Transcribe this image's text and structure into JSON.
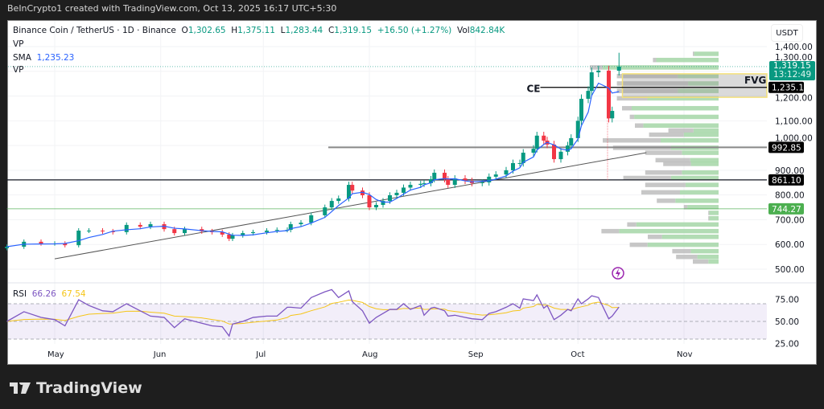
{
  "header": {
    "credit": "BeInCrypto1 created with TradingView.com, Oct 13, 2025 16:17 UTC+5:30"
  },
  "legend": {
    "symbol": "Binance Coin / TetherUS · 1D · Binance",
    "o_label": "O",
    "o": "1,302.65",
    "h_label": "H",
    "h": "1,375.11",
    "l_label": "L",
    "l": "1,283.44",
    "c_label": "C",
    "c": "1,319.15",
    "change": "+16.50 (+1.27%)",
    "vol_label": "Vol",
    "vol": "842.84K",
    "vp1": "VP",
    "sma_label": "SMA",
    "sma": "1,235.23",
    "vp2": "VP",
    "rsi_label": "RSI",
    "rsi": "66.26",
    "rsi_ma": "67.54"
  },
  "price_axis": {
    "currency": "USDT",
    "ticks": [
      "1,400.00",
      "1,300.00",
      "1,200.00",
      "1,100.00",
      "1,000.00",
      "900.00",
      "800.00",
      "700.00",
      "600.00",
      "500.00"
    ],
    "tick_values": [
      1400,
      1300,
      1200,
      1100,
      1000,
      900,
      800,
      700,
      600,
      500
    ],
    "last_price": "1,319.15",
    "countdown": "13:12:49"
  },
  "rsi_axis": {
    "ticks": [
      "75.00",
      "50.00",
      "25.00"
    ],
    "tick_values": [
      75,
      50,
      25
    ],
    "bands": [
      70,
      50,
      30
    ]
  },
  "time_axis": {
    "labels": [
      "May",
      "Jun",
      "Jul",
      "Aug",
      "Sep",
      "Oct",
      "Nov"
    ],
    "dates": [
      "2025-05-01",
      "2025-06-01",
      "2025-07-01",
      "2025-08-01",
      "2025-09-01",
      "2025-10-01",
      "2025-11-01"
    ]
  },
  "chart_data": {
    "type": "candlestick",
    "last_candle": {
      "o": 1302.65,
      "h": 1375.11,
      "l": 1283.44,
      "c": 1319.15
    },
    "points": [
      {
        "d": "2025-04-17",
        "c": 591,
        "rsi": 50
      },
      {
        "d": "2025-04-22",
        "c": 611,
        "rsi": 61
      },
      {
        "d": "2025-04-27",
        "c": 604,
        "rsi": 54.5
      },
      {
        "d": "2025-05-01",
        "c": 604,
        "rsi": 52
      },
      {
        "d": "2025-05-04",
        "c": 597,
        "rsi": 45
      },
      {
        "d": "2025-05-08",
        "c": 656,
        "rsi": 74.5
      },
      {
        "d": "2025-05-11",
        "c": 656,
        "rsi": 68
      },
      {
        "d": "2025-05-15",
        "c": 653,
        "rsi": 62
      },
      {
        "d": "2025-05-18",
        "c": 650,
        "rsi": 61
      },
      {
        "d": "2025-05-22",
        "c": 679,
        "rsi": 70
      },
      {
        "d": "2025-05-26",
        "c": 672,
        "rsi": 62
      },
      {
        "d": "2025-05-29",
        "c": 682,
        "rsi": 56
      },
      {
        "d": "2025-06-02",
        "c": 662,
        "rsi": 54.5
      },
      {
        "d": "2025-06-05",
        "c": 646,
        "rsi": 43
      },
      {
        "d": "2025-06-08",
        "c": 662,
        "rsi": 53
      },
      {
        "d": "2025-06-13",
        "c": 653,
        "rsi": 48
      },
      {
        "d": "2025-06-16",
        "c": 650,
        "rsi": 45
      },
      {
        "d": "2025-06-19",
        "c": 640,
        "rsi": 44
      },
      {
        "d": "2025-06-21",
        "c": 623,
        "rsi": 33.5
      },
      {
        "d": "2025-06-22",
        "c": 637,
        "rsi": 47
      },
      {
        "d": "2025-06-25",
        "c": 646,
        "rsi": 50
      },
      {
        "d": "2025-06-28",
        "c": 650,
        "rsi": 54.5
      },
      {
        "d": "2025-07-02",
        "c": 656,
        "rsi": 56
      },
      {
        "d": "2025-07-05",
        "c": 659,
        "rsi": 56
      },
      {
        "d": "2025-07-08",
        "c": 659,
        "rsi": 66
      },
      {
        "d": "2025-07-09",
        "c": 682,
        "rsi": 66
      },
      {
        "d": "2025-07-12",
        "c": 688,
        "rsi": 65
      },
      {
        "d": "2025-07-15",
        "c": 718,
        "rsi": 77
      },
      {
        "d": "2025-07-19",
        "c": 750,
        "rsi": 83.5
      },
      {
        "d": "2025-07-21",
        "c": 776,
        "rsi": 86
      },
      {
        "d": "2025-07-23",
        "c": 786,
        "rsi": 77
      },
      {
        "d": "2025-07-26",
        "c": 841,
        "rsi": 84.5
      },
      {
        "d": "2025-07-27",
        "c": 818,
        "rsi": 72.5
      },
      {
        "d": "2025-07-30",
        "c": 799,
        "rsi": 62
      },
      {
        "d": "2025-08-01",
        "c": 750,
        "rsi": 48
      },
      {
        "d": "2025-08-03",
        "c": 760,
        "rsi": 54.5
      },
      {
        "d": "2025-08-05",
        "c": 776,
        "rsi": 59
      },
      {
        "d": "2025-08-07",
        "c": 799,
        "rsi": 63.6
      },
      {
        "d": "2025-08-09",
        "c": 809,
        "rsi": 63.6
      },
      {
        "d": "2025-08-11",
        "c": 830,
        "rsi": 70
      },
      {
        "d": "2025-08-13",
        "c": 841,
        "rsi": 63.6
      },
      {
        "d": "2025-08-16",
        "c": 845,
        "rsi": 68
      },
      {
        "d": "2025-08-17",
        "c": 848,
        "rsi": 57
      },
      {
        "d": "2025-08-19",
        "c": 864,
        "rsi": 65
      },
      {
        "d": "2025-08-20",
        "c": 890,
        "rsi": 66
      },
      {
        "d": "2025-08-23",
        "c": 864,
        "rsi": 62
      },
      {
        "d": "2025-08-24",
        "c": 841,
        "rsi": 56
      },
      {
        "d": "2025-08-26",
        "c": 867,
        "rsi": 57
      },
      {
        "d": "2025-08-29",
        "c": 857,
        "rsi": 54.5
      },
      {
        "d": "2025-08-31",
        "c": 848,
        "rsi": 53
      },
      {
        "d": "2025-09-03",
        "c": 851,
        "rsi": 52
      },
      {
        "d": "2025-09-05",
        "c": 874,
        "rsi": 59
      },
      {
        "d": "2025-09-07",
        "c": 883,
        "rsi": 61
      },
      {
        "d": "2025-09-10",
        "c": 900,
        "rsi": 66
      },
      {
        "d": "2025-09-12",
        "c": 929,
        "rsi": 70
      },
      {
        "d": "2025-09-14",
        "c": 929,
        "rsi": 65
      },
      {
        "d": "2025-09-15",
        "c": 971,
        "rsi": 75.5
      },
      {
        "d": "2025-09-18",
        "c": 987,
        "rsi": 73.6
      },
      {
        "d": "2025-09-19",
        "c": 1040,
        "rsi": 80
      },
      {
        "d": "2025-09-21",
        "c": 1020,
        "rsi": 65
      },
      {
        "d": "2025-09-22",
        "c": 1004,
        "rsi": 68
      },
      {
        "d": "2025-09-24",
        "c": 945,
        "rsi": 52
      },
      {
        "d": "2025-09-26",
        "c": 975,
        "rsi": 57
      },
      {
        "d": "2025-09-28",
        "c": 1000,
        "rsi": 63.6
      },
      {
        "d": "2025-09-29",
        "c": 1030,
        "rsi": 62
      },
      {
        "d": "2025-10-01",
        "c": 1100,
        "rsi": 75.5
      },
      {
        "d": "2025-10-02",
        "c": 1189,
        "rsi": 70
      },
      {
        "d": "2025-10-04",
        "c": 1221,
        "rsi": 75.5
      },
      {
        "d": "2025-10-05",
        "c": 1296,
        "rsi": 79
      },
      {
        "d": "2025-10-07",
        "c": 1303,
        "rsi": 77
      },
      {
        "d": "2025-10-10",
        "c": 1110,
        "rsi": 53
      },
      {
        "d": "2025-10-11",
        "c": 1140,
        "rsi": 56
      },
      {
        "d": "2025-10-13",
        "c": 1319.15,
        "rsi": 66.26
      }
    ],
    "volume_profile": [
      {
        "p": 1370,
        "v": 20,
        "down": 0.05
      },
      {
        "p": 1345,
        "v": 51,
        "down": 0.05
      },
      {
        "p": 1315,
        "v": 100,
        "down": 0.1
      },
      {
        "p": 1280,
        "v": 79,
        "down": 0.6
      },
      {
        "p": 1250,
        "v": 79,
        "down": 0.7
      },
      {
        "p": 1220,
        "v": 79,
        "down": 0.6
      },
      {
        "p": 1190,
        "v": 79,
        "down": 0.3
      },
      {
        "p": 1150,
        "v": 75,
        "down": 0.1
      },
      {
        "p": 1115,
        "v": 69,
        "down": 0.05
      },
      {
        "p": 1080,
        "v": 65,
        "down": 0.1
      },
      {
        "p": 1060,
        "v": 39,
        "down": 0.5
      },
      {
        "p": 1043,
        "v": 54,
        "down": 0.5
      },
      {
        "p": 1020,
        "v": 90,
        "down": 0.5
      },
      {
        "p": 990,
        "v": 82,
        "down": 0.55
      },
      {
        "p": 970,
        "v": 57,
        "down": 0.5
      },
      {
        "p": 940,
        "v": 49,
        "down": 0.55
      },
      {
        "p": 925,
        "v": 43,
        "down": 0.5
      },
      {
        "p": 890,
        "v": 57,
        "down": 0.5
      },
      {
        "p": 868,
        "v": 74,
        "down": 0.5
      },
      {
        "p": 840,
        "v": 57,
        "down": 0.55
      },
      {
        "p": 810,
        "v": 60,
        "down": 0.5
      },
      {
        "p": 776,
        "v": 48,
        "down": 0.3
      },
      {
        "p": 750,
        "v": 27,
        "down": 0.1
      },
      {
        "p": 727,
        "v": 8,
        "down": 0.1
      },
      {
        "p": 705,
        "v": 8,
        "down": 0.1
      },
      {
        "p": 680,
        "v": 71,
        "down": 0.1
      },
      {
        "p": 653,
        "v": 91,
        "down": 0.15
      },
      {
        "p": 630,
        "v": 55,
        "down": 0.2
      },
      {
        "p": 598,
        "v": 69,
        "down": 0.2
      },
      {
        "p": 572,
        "v": 36,
        "down": 0.4
      },
      {
        "p": 549,
        "v": 33,
        "down": 0.5
      },
      {
        "p": 530,
        "v": 20,
        "down": 0.6
      }
    ],
    "levels": [
      {
        "price": 1235.18,
        "label": "1,235.18",
        "color": "#000000",
        "name": "CE",
        "from": "2025-09-20"
      },
      {
        "price": 992.85,
        "label": "992.85",
        "color": "#888888",
        "from": "2025-07-20"
      },
      {
        "price": 861.1,
        "label": "861.10",
        "color": "#131722",
        "from": "2025-04-17"
      },
      {
        "price": 744.27,
        "label": "744.27",
        "color": "#4caf50",
        "from": "2025-04-17"
      }
    ],
    "fvg": {
      "label": "FVG",
      "top": 1290,
      "bottom": 1195,
      "from": "2025-10-14"
    },
    "trendline": [
      {
        "d": "2025-05-01",
        "p": 542
      },
      {
        "d": "2025-10-21",
        "p": 971
      }
    ],
    "ylim": [
      500,
      1400
    ]
  },
  "colors": {
    "up": "#089981",
    "down": "#f23645",
    "sma": "#2962ff",
    "rsi": "#7e57c2",
    "rsi_ma": "#f5c518",
    "vp_up": "#a5d6a7",
    "vp_down": "#bdbdbd"
  },
  "footer": {
    "brand": "TradingView"
  }
}
